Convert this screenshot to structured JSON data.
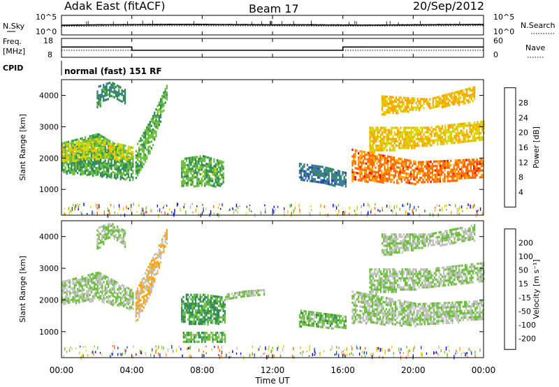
{
  "header": {
    "station": "Adak East (fitACF)",
    "beam": "Beam 17",
    "date": "20/Sep/2012"
  },
  "noise_panel": {
    "left_label": "N.Sky",
    "right_label": "N.Search",
    "left_ticks": [
      "10^5",
      "10^0"
    ],
    "right_ticks": [
      "10^5",
      "10^0"
    ]
  },
  "freq_panel": {
    "left_label_1": "Freq.",
    "left_label_2": "[MHz]",
    "left_ticks": [
      "18",
      "8"
    ],
    "right_label": "Nave",
    "right_ticks": [
      "60",
      "0"
    ]
  },
  "cpid_panel": {
    "label": "CPID",
    "text": "normal (fast) 151 RF"
  },
  "power_panel": {
    "ylabel": "Slant Range [km]",
    "y_ticks": [
      "4000",
      "3000",
      "2000",
      "1000"
    ],
    "colorbar_label": "Power [dB]",
    "colorbar_ticks": [
      "28",
      "24",
      "20",
      "16",
      "12",
      "8",
      "4"
    ]
  },
  "velocity_panel": {
    "ylabel": "Slant Range [km]",
    "y_ticks": [
      "4000",
      "3000",
      "2000",
      "1000"
    ],
    "colorbar_label": "Velocity [m s⁻¹]",
    "colorbar_ticks": [
      "200",
      "100",
      "50",
      "15",
      "-15",
      "-50",
      "-100",
      "-200"
    ]
  },
  "xaxis": {
    "label": "Time UT",
    "ticks": [
      "00:00",
      "04:00",
      "08:00",
      "12:00",
      "16:00",
      "20:00",
      "00:00"
    ]
  },
  "chart_data": [
    {
      "type": "line",
      "title": "N.Sky / N.Search",
      "x_range_hours": [
        0,
        24
      ],
      "y_scale": "log",
      "ylim": [
        1,
        100000
      ],
      "series": [
        {
          "name": "N.Sky",
          "style": "solid",
          "x": [
            0,
            2,
            4,
            6,
            8,
            10,
            12,
            14,
            16,
            18,
            20,
            22,
            24
          ],
          "y": [
            300,
            400,
            450,
            500,
            500,
            450,
            400,
            400,
            350,
            350,
            400,
            450,
            500
          ]
        },
        {
          "name": "N.Search",
          "style": "dotted",
          "x": [
            0,
            4,
            8,
            12,
            16,
            20,
            24
          ],
          "y": [
            150,
            200,
            220,
            200,
            180,
            200,
            230
          ]
        }
      ]
    },
    {
      "type": "line",
      "title": "Freq. / Nave",
      "x_range_hours": [
        0,
        24
      ],
      "left_ylim": [
        8,
        18
      ],
      "right_ylim": [
        0,
        60
      ],
      "series": [
        {
          "name": "Freq.",
          "axis": "left",
          "style": "solid",
          "step": true,
          "x": [
            0,
            4,
            4,
            16,
            16,
            24
          ],
          "y": [
            13.5,
            13.5,
            11.5,
            11.5,
            13.5,
            13.5
          ]
        },
        {
          "name": "Nave",
          "axis": "right",
          "style": "dotted",
          "x": [
            0,
            24
          ],
          "y": [
            21,
            21
          ]
        }
      ]
    },
    {
      "type": "heatmap",
      "title": "Power [dB]",
      "x_range_hours": [
        0,
        24
      ],
      "ylim": [
        180,
        4500
      ],
      "clim": [
        0,
        32
      ],
      "colorscale": [
        "#0000ff",
        "#1f3fcf",
        "#3b7a8f",
        "#2e8b57",
        "#6cbf3a",
        "#d6d600",
        "#ffa500",
        "#ff6a00",
        "#ff0000"
      ],
      "regions": [
        {
          "t": [
            0,
            4.1
          ],
          "range_lo": [
            1550,
            1450,
            1300
          ],
          "range_hi": [
            2500,
            2800,
            2100
          ],
          "power": 14
        },
        {
          "t": [
            0,
            4.1
          ],
          "range_lo": [
            1900,
            2000,
            1950
          ],
          "range_hi": [
            2450,
            2650,
            2350
          ],
          "power": 19
        },
        {
          "t": [
            2,
            3.6
          ],
          "range_lo": [
            3600,
            4000,
            3700
          ],
          "range_hi": [
            4300,
            4450,
            4200
          ],
          "power": 12
        },
        {
          "t": [
            4.2,
            6.0
          ],
          "range_lo": [
            1400,
            2300,
            3900
          ],
          "range_hi": [
            2400,
            3300,
            4400
          ],
          "power": 15
        },
        {
          "t": [
            6.8,
            9.2
          ],
          "range_lo": [
            1100,
            1150,
            1100
          ],
          "range_hi": [
            2000,
            2100,
            1900
          ],
          "power": 15
        },
        {
          "t": [
            13.5,
            16.2
          ],
          "range_lo": [
            1300,
            1200,
            1100
          ],
          "range_hi": [
            1850,
            1750,
            1550
          ],
          "power": 9
        },
        {
          "t": [
            16.5,
            24
          ],
          "range_lo": [
            1300,
            1200,
            1400
          ],
          "range_hi": [
            2300,
            1900,
            2000
          ],
          "power": 26
        },
        {
          "t": [
            17.5,
            24
          ],
          "range_lo": [
            2200,
            2400,
            2600
          ],
          "range_hi": [
            3000,
            3000,
            3200
          ],
          "power": 21
        },
        {
          "t": [
            18.2,
            23.5
          ],
          "range_lo": [
            3400,
            3600,
            3800
          ],
          "range_hi": [
            4000,
            3900,
            4300
          ],
          "power": 22
        }
      ]
    },
    {
      "type": "heatmap",
      "title": "Velocity [m s⁻¹]",
      "x_range_hours": [
        0,
        24
      ],
      "ylim": [
        180,
        4500
      ],
      "clim": [
        -250,
        250
      ],
      "colorscale": [
        "#ff0000",
        "#ff6a00",
        "#ffa500",
        "#c0c0bf",
        "#6cbf3a",
        "#2e8b57",
        "#1f3fcf",
        "#0000ff"
      ],
      "regions": [
        {
          "t": [
            0,
            4.1
          ],
          "range_lo": [
            1900,
            2000,
            1700
          ],
          "range_hi": [
            2600,
            2900,
            2300
          ],
          "velocity": 0
        },
        {
          "t": [
            2,
            3.6
          ],
          "range_lo": [
            3600,
            4000,
            3700
          ],
          "range_hi": [
            4300,
            4450,
            4200
          ],
          "velocity": 0
        },
        {
          "t": [
            4.2,
            6.0
          ],
          "range_lo": [
            1300,
            2300,
            3900
          ],
          "range_hi": [
            2300,
            3300,
            4300
          ],
          "velocity": -60
        },
        {
          "t": [
            6.8,
            9.3
          ],
          "range_lo": [
            1300,
            1250,
            1300
          ],
          "range_hi": [
            2200,
            2200,
            2100
          ],
          "velocity": 70
        },
        {
          "t": [
            6.9,
            9.3
          ],
          "range_lo": [
            700,
            700,
            700
          ],
          "range_hi": [
            1000,
            1000,
            1000
          ],
          "velocity": 40
        },
        {
          "t": [
            9.3,
            11.5
          ],
          "range_lo": [
            2000,
            2100,
            2150
          ],
          "range_hi": [
            2200,
            2300,
            2350
          ],
          "velocity": 0
        },
        {
          "t": [
            13.5,
            16.2
          ],
          "range_lo": [
            1200,
            1150,
            1100
          ],
          "range_hi": [
            1700,
            1600,
            1500
          ],
          "velocity": 35
        },
        {
          "t": [
            16.5,
            24
          ],
          "range_lo": [
            1300,
            1200,
            1400
          ],
          "range_hi": [
            2300,
            1900,
            2000
          ],
          "velocity": 0
        },
        {
          "t": [
            17.5,
            24
          ],
          "range_lo": [
            2200,
            2400,
            2600
          ],
          "range_hi": [
            3000,
            3000,
            3200
          ],
          "velocity": 0
        },
        {
          "t": [
            18.2,
            23.5
          ],
          "range_lo": [
            3400,
            3700,
            3900
          ],
          "range_hi": [
            4100,
            4100,
            4400
          ],
          "velocity": 0
        }
      ]
    }
  ]
}
